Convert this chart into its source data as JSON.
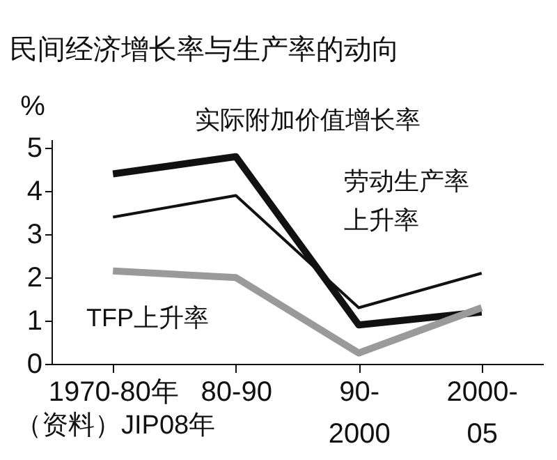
{
  "chart_data": {
    "type": "line",
    "title": "民间经济增长率与生产率的动向",
    "ylabel": "%",
    "categories": [
      "1970-80年",
      "80-90",
      "90-\n2000",
      "2000-\n05"
    ],
    "series": [
      {
        "name": "实际附加价值增长率",
        "color": "#111111",
        "values": [
          4.4,
          4.8,
          0.9,
          1.2
        ]
      },
      {
        "name": "劳动生产率上升率",
        "color": "#111111",
        "values": [
          3.4,
          3.9,
          1.3,
          2.1
        ]
      },
      {
        "name": "TFP上升率",
        "color": "#9a9a9a",
        "values": [
          2.15,
          2.0,
          0.25,
          1.3
        ]
      }
    ],
    "ylim": [
      0,
      5.2
    ],
    "yticks": [
      0,
      1,
      2,
      3,
      4,
      5
    ],
    "marker": "none",
    "line_style": "solid",
    "annotations": [
      "（资料）JIP08年"
    ]
  }
}
